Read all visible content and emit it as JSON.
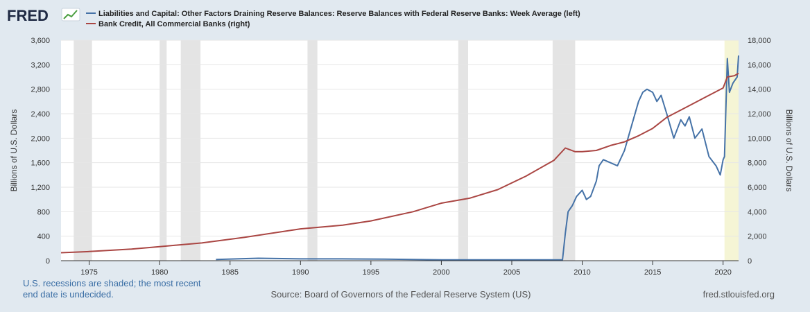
{
  "logo": {
    "text": "FRED",
    "icon": "fred-line-chart-icon"
  },
  "chart_data": {
    "type": "line",
    "legend": [
      {
        "label": "Liabilities and Capital: Other Factors Draining Reserve Balances: Reserve Balances with Federal Reserve Banks: Week Average (left)",
        "color": "#4572a7"
      },
      {
        "label": "Bank Credit, All Commercial Banks (right)",
        "color": "#aa4643"
      }
    ],
    "x_ticks": [
      "1975",
      "1980",
      "1985",
      "1990",
      "1995",
      "2000",
      "2005",
      "2010",
      "2015",
      "2020"
    ],
    "xlim": [
      1973.0,
      2021.1
    ],
    "left_axis": {
      "label": "Billions of U.S. Dollars",
      "ylim": [
        0,
        3600
      ],
      "ticks": [
        "0",
        "400",
        "800",
        "1,200",
        "1,600",
        "2,000",
        "2,400",
        "2,800",
        "3,200",
        "3,600"
      ]
    },
    "right_axis": {
      "label": "Billions of U.S. Dollars",
      "ylim": [
        0,
        18000
      ],
      "ticks": [
        "0",
        "2,000",
        "4,000",
        "6,000",
        "8,000",
        "10,000",
        "12,000",
        "14,000",
        "16,000",
        "18,000"
      ]
    },
    "recessions": [
      [
        1973.9,
        1975.2
      ],
      [
        1980.0,
        1980.5
      ],
      [
        1981.5,
        1982.9
      ],
      [
        1990.5,
        1991.2
      ],
      [
        2001.2,
        2001.9
      ],
      [
        2007.9,
        2009.5
      ],
      [
        2020.1,
        2021.1
      ]
    ],
    "latest_shade_color": "#f5f5d5",
    "series": [
      {
        "name": "Reserve Balances with Federal Reserve Banks",
        "axis": "left",
        "color": "#4572a7",
        "x": [
          1984.0,
          1987.0,
          1990.0,
          1993.0,
          1996.0,
          2000.0,
          2005.0,
          2008.6,
          2008.8,
          2009.0,
          2009.3,
          2009.6,
          2010.0,
          2010.3,
          2010.6,
          2011.0,
          2011.2,
          2011.5,
          2012.0,
          2012.5,
          2013.0,
          2013.5,
          2014.0,
          2014.3,
          2014.6,
          2015.0,
          2015.3,
          2015.6,
          2016.0,
          2016.5,
          2017.0,
          2017.3,
          2017.6,
          2018.0,
          2018.5,
          2019.0,
          2019.5,
          2019.8,
          2020.0,
          2020.1,
          2020.3,
          2020.45,
          2020.7,
          2021.0,
          2021.1
        ],
        "y": [
          20,
          40,
          30,
          30,
          25,
          15,
          15,
          15,
          450,
          800,
          900,
          1050,
          1150,
          1000,
          1050,
          1300,
          1550,
          1650,
          1600,
          1550,
          1800,
          2200,
          2600,
          2750,
          2800,
          2750,
          2600,
          2700,
          2400,
          2000,
          2300,
          2200,
          2350,
          2000,
          2150,
          1700,
          1550,
          1400,
          1650,
          1700,
          3300,
          2750,
          2900,
          3000,
          3350
        ]
      },
      {
        "name": "Bank Credit, All Commercial Banks",
        "axis": "right",
        "color": "#aa4643",
        "x": [
          1973.0,
          1975.0,
          1978.0,
          1980.0,
          1983.0,
          1986.0,
          1990.0,
          1993.0,
          1995.0,
          1998.0,
          2000.0,
          2002.0,
          2004.0,
          2006.0,
          2008.0,
          2008.8,
          2009.5,
          2010.0,
          2011.0,
          2012.0,
          2013.0,
          2014.0,
          2015.0,
          2016.0,
          2017.0,
          2018.0,
          2019.0,
          2020.0,
          2020.3,
          2020.8,
          2021.1
        ],
        "y": [
          650,
          750,
          950,
          1150,
          1450,
          1900,
          2600,
          2900,
          3250,
          4000,
          4700,
          5100,
          5800,
          6900,
          8200,
          9200,
          8900,
          8900,
          9000,
          9400,
          9700,
          10200,
          10800,
          11700,
          12300,
          12900,
          13500,
          14100,
          15000,
          15100,
          15300
        ]
      }
    ]
  },
  "footer": {
    "note_line1": "U.S. recessions are shaded; the most recent",
    "note_line2": "end date is undecided.",
    "source": "Source: Board of Governors of the Federal Reserve System (US)",
    "site": "fred.stlouisfed.org"
  }
}
